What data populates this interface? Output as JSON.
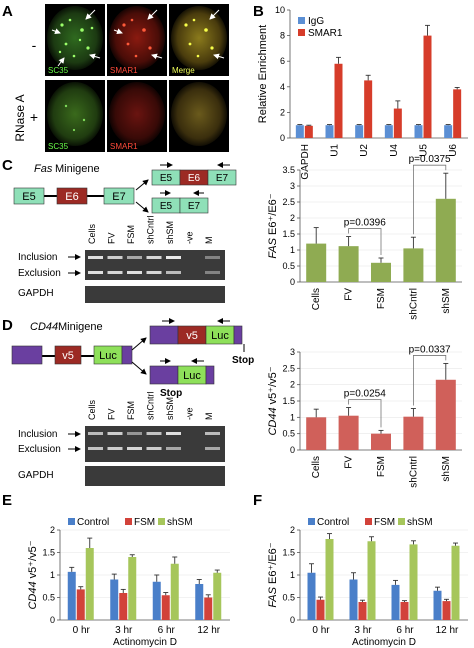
{
  "panel_a": {
    "letter": "A",
    "side_label": "RNase A",
    "row_minus": "-",
    "row_plus": "+",
    "sc35": "SC35",
    "smar1": "SMAR1",
    "merge": "Merge"
  },
  "panel_b": {
    "letter": "B"
  },
  "panel_c": {
    "letter": "C",
    "minigene_gene": "Fas",
    "minigene_word": "Minigene",
    "exon5": "E5",
    "exon6": "E6",
    "exon7": "E7",
    "lanes": [
      "Cells",
      "FV",
      "FSM",
      "shCntrl",
      "shSM",
      "-ve",
      "M"
    ],
    "inclusion": "Inclusion",
    "exclusion": "Exclusion",
    "gapdh": "GAPDH"
  },
  "panel_d": {
    "letter": "D",
    "minigene_gene": "CD44",
    "minigene_word": "Minigene",
    "v5": "v5",
    "luc": "Luc",
    "stop": "Stop",
    "lanes": [
      "Cells",
      "FV",
      "FSM",
      "shCntrl",
      "shSM",
      "-ve",
      "M"
    ],
    "inclusion": "Inclusion",
    "exclusion": "Exclusion",
    "gapdh": "GAPDH"
  },
  "panel_e": {
    "letter": "E"
  },
  "panel_f": {
    "letter": "F"
  },
  "colors": {
    "igg": "#5b8fd4",
    "smar1": "#d63c2a",
    "green_bar": "#8fab52",
    "red_bar": "#d0605a",
    "control": "#4a7fc9",
    "fsm": "#d2423a",
    "shsm": "#a6c65b",
    "exon_green": "#8fe0b8",
    "exon_red": "#9c2a24",
    "cd44_purple": "#6a3fa0",
    "luc_green": "#8ee05a"
  },
  "chart_data": [
    {
      "type": "bar",
      "ylabel": "Relative Enrichment",
      "ylim": [
        0,
        10
      ],
      "yticks": [
        "0",
        "2",
        "4",
        "6",
        "8",
        "10"
      ],
      "categories": [
        "GAPDH",
        "U1",
        "U2",
        "U4",
        "U5",
        "U6"
      ],
      "legend": "top-left",
      "series": [
        {
          "name": "IgG",
          "values": [
            1,
            1,
            1,
            1,
            1,
            1
          ],
          "errors": [
            0.05,
            0.05,
            0.05,
            0.05,
            0.05,
            0.05
          ]
        },
        {
          "name": "SMAR1",
          "values": [
            0.95,
            5.8,
            4.5,
            2.3,
            8.0,
            3.8
          ],
          "errors": [
            0.05,
            0.5,
            0.4,
            0.6,
            0.8,
            0.15
          ]
        }
      ]
    },
    {
      "type": "bar",
      "ylabel_italic": "FAS",
      "ylabel_rest": " E6⁺/E6⁻",
      "ylim": [
        0,
        3.5
      ],
      "yticks": [
        "0",
        "0.5",
        "1",
        "1.5",
        "2",
        "2.5",
        "3",
        "3.5"
      ],
      "categories": [
        "Cells",
        "FV",
        "FSM",
        "shCntrl",
        "shSM"
      ],
      "values": [
        1.2,
        1.12,
        0.6,
        1.05,
        2.6
      ],
      "errors": [
        0.5,
        0.3,
        0.15,
        0.35,
        0.8
      ],
      "annotations": [
        {
          "text": "p=0.0396",
          "from": "FV",
          "to": "FSM"
        },
        {
          "text": "p=0.0375",
          "from": "shCntrl",
          "to": "shSM"
        }
      ]
    },
    {
      "type": "bar",
      "ylabel_italic": "CD44",
      "ylabel_rest": " v5⁺/v5⁻",
      "ylim": [
        0,
        3
      ],
      "yticks": [
        "0",
        "0.5",
        "1",
        "1.5",
        "2",
        "2.5",
        "3"
      ],
      "categories": [
        "Cells",
        "FV",
        "FSM",
        "shCntrl",
        "shSM"
      ],
      "values": [
        1.0,
        1.05,
        0.5,
        1.02,
        2.15
      ],
      "errors": [
        0.25,
        0.25,
        0.1,
        0.25,
        0.5
      ],
      "annotations": [
        {
          "text": "p=0.0254",
          "from": "FV",
          "to": "FSM"
        },
        {
          "text": "p=0.0337",
          "from": "shCntrl",
          "to": "shSM"
        }
      ]
    },
    {
      "type": "bar",
      "ylabel_italic": "CD44",
      "ylabel_rest": " v5⁺/v5⁻",
      "xlabel": "Actinomycin D",
      "ylim": [
        0,
        2
      ],
      "yticks": [
        "0",
        "0.5",
        "1",
        "1.5",
        "2"
      ],
      "categories": [
        "0 hr",
        "3 hr",
        "6 hr",
        "12 hr"
      ],
      "legend": "top",
      "series": [
        {
          "name": "Control",
          "values": [
            1.07,
            0.9,
            0.85,
            0.8
          ],
          "errors": [
            0.1,
            0.12,
            0.15,
            0.1
          ]
        },
        {
          "name": "FSM",
          "values": [
            0.68,
            0.6,
            0.55,
            0.5
          ],
          "errors": [
            0.06,
            0.08,
            0.06,
            0.06
          ]
        },
        {
          "name": "shSM",
          "values": [
            1.6,
            1.4,
            1.25,
            1.05
          ],
          "errors": [
            0.22,
            0.05,
            0.15,
            0.06
          ]
        }
      ]
    },
    {
      "type": "bar",
      "ylabel_italic": "FAS",
      "ylabel_rest": " E6⁺/E6⁻",
      "xlabel": "Actinomycin D",
      "ylim": [
        0,
        2
      ],
      "yticks": [
        "0",
        "0.5",
        "1",
        "1.5",
        "2"
      ],
      "categories": [
        "0 hr",
        "3 hr",
        "6 hr",
        "12 hr"
      ],
      "legend": "top",
      "series": [
        {
          "name": "Control",
          "values": [
            1.05,
            0.9,
            0.78,
            0.65
          ],
          "errors": [
            0.2,
            0.15,
            0.1,
            0.08
          ]
        },
        {
          "name": "FSM",
          "values": [
            0.45,
            0.4,
            0.4,
            0.42
          ],
          "errors": [
            0.06,
            0.04,
            0.03,
            0.04
          ]
        },
        {
          "name": "shSM",
          "values": [
            1.8,
            1.75,
            1.68,
            1.65
          ],
          "errors": [
            0.12,
            0.1,
            0.08,
            0.06
          ]
        }
      ]
    }
  ]
}
